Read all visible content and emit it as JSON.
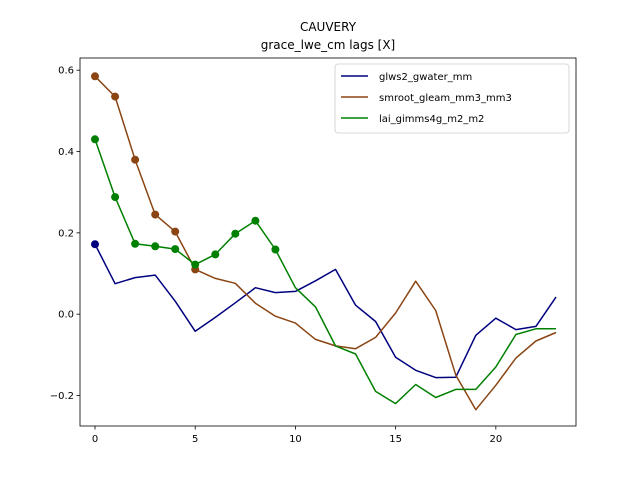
{
  "chart_data": {
    "type": "line",
    "title": "CAUVERY",
    "subtitle": "grace_lwe_cm lags [X]",
    "xlabel": "",
    "ylabel": "",
    "xlim": [
      -0.75,
      24
    ],
    "ylim": [
      -0.275,
      0.63
    ],
    "xticks": [
      0,
      5,
      10,
      15,
      20
    ],
    "yticks": [
      -0.2,
      0.0,
      0.2,
      0.4,
      0.6
    ],
    "ytick_labels": [
      "−0.2",
      "0.0",
      "0.2",
      "0.4",
      "0.6"
    ],
    "grid": false,
    "legend_position": "upper-right",
    "series": [
      {
        "name": "glws2_gwater_mm",
        "color": "#00007f",
        "x": [
          0,
          1,
          2,
          3,
          4,
          5,
          6,
          7,
          8,
          9,
          10,
          11,
          12,
          13,
          14,
          15,
          16,
          17,
          18,
          19,
          20,
          21,
          22,
          23
        ],
        "values": [
          0.172,
          0.075,
          0.09,
          0.096,
          0.032,
          -0.042,
          -0.008,
          0.028,
          0.065,
          0.053,
          0.056,
          0.082,
          0.11,
          0.022,
          -0.018,
          -0.106,
          -0.138,
          -0.156,
          -0.155,
          -0.052,
          -0.01,
          -0.038,
          -0.03,
          0.042
        ],
        "markers": [
          0
        ]
      },
      {
        "name": "smroot_gleam_mm3_mm3",
        "color": "#8b4513",
        "x": [
          0,
          1,
          2,
          3,
          4,
          5,
          6,
          7,
          8,
          9,
          10,
          11,
          12,
          13,
          14,
          15,
          16,
          17,
          18,
          19,
          20,
          21,
          22,
          23
        ],
        "values": [
          0.585,
          0.535,
          0.38,
          0.245,
          0.203,
          0.11,
          0.088,
          0.076,
          0.027,
          -0.005,
          -0.022,
          -0.062,
          -0.078,
          -0.085,
          -0.057,
          0.003,
          0.081,
          0.009,
          -0.15,
          -0.235,
          -0.175,
          -0.108,
          -0.066,
          -0.045
        ],
        "markers": [
          0,
          1,
          2,
          3,
          4,
          5
        ]
      },
      {
        "name": "lai_gimms4g_m2_m2",
        "color": "#008000",
        "x": [
          0,
          1,
          2,
          3,
          4,
          5,
          6,
          7,
          8,
          9,
          10,
          11,
          12,
          13,
          14,
          15,
          16,
          17,
          18,
          19,
          20,
          21,
          22,
          23
        ],
        "values": [
          0.43,
          0.288,
          0.173,
          0.167,
          0.16,
          0.122,
          0.147,
          0.198,
          0.23,
          0.159,
          0.065,
          0.018,
          -0.078,
          -0.098,
          -0.19,
          -0.22,
          -0.173,
          -0.205,
          -0.185,
          -0.185,
          -0.13,
          -0.05,
          -0.036,
          -0.036
        ],
        "markers": [
          0,
          1,
          2,
          3,
          4,
          5,
          6,
          7,
          8,
          9
        ]
      }
    ]
  }
}
